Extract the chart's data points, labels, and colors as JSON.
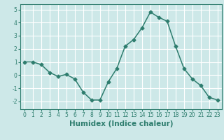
{
  "x": [
    0,
    1,
    2,
    3,
    4,
    5,
    6,
    7,
    8,
    9,
    10,
    11,
    12,
    13,
    14,
    15,
    16,
    17,
    18,
    19,
    20,
    21,
    22,
    23
  ],
  "y": [
    1.0,
    1.0,
    0.8,
    0.2,
    -0.1,
    0.05,
    -0.3,
    -1.3,
    -1.9,
    -1.9,
    -0.5,
    0.5,
    2.2,
    2.7,
    3.6,
    4.8,
    4.4,
    4.1,
    2.2,
    0.5,
    -0.3,
    -0.8,
    -1.7,
    -1.9
  ],
  "line_color": "#2e7d6e",
  "marker": "D",
  "marker_size": 2.5,
  "bg_color": "#cde8e8",
  "grid_color": "#ffffff",
  "xlabel": "Humidex (Indice chaleur)",
  "ylim": [
    -2.6,
    5.4
  ],
  "xlim": [
    -0.5,
    23.5
  ],
  "yticks": [
    -2,
    -1,
    0,
    1,
    2,
    3,
    4,
    5
  ],
  "xticks": [
    0,
    1,
    2,
    3,
    4,
    5,
    6,
    7,
    8,
    9,
    10,
    11,
    12,
    13,
    14,
    15,
    16,
    17,
    18,
    19,
    20,
    21,
    22,
    23
  ],
  "tick_label_size": 5.5,
  "xlabel_size": 7.5,
  "line_width": 1.1
}
